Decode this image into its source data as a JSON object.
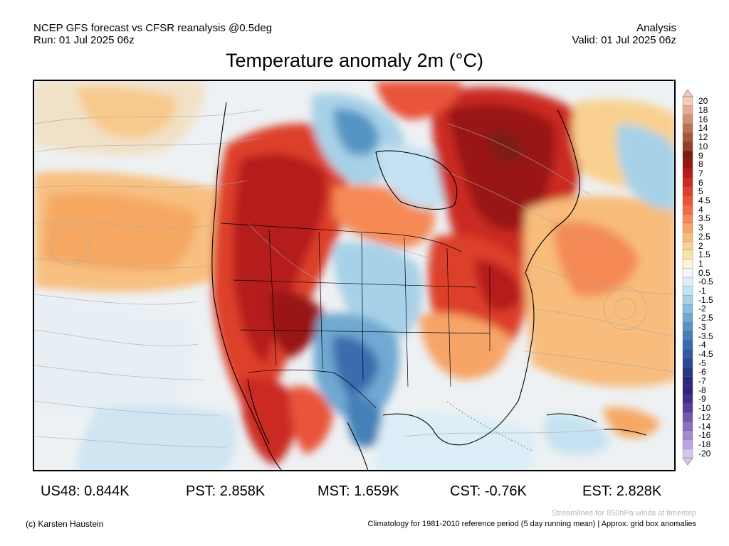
{
  "header": {
    "left_line1": "NCEP GFS forecast vs CFSR reanalysis @0.5deg",
    "left_line2": "Run: 01 Jul 2025 06z",
    "right_line1": "Analysis",
    "right_line2": "Valid: 01 Jul 2025 06z"
  },
  "title": "Temperature anomaly 2m (°C)",
  "colorbar": {
    "labels": [
      "20",
      "18",
      "16",
      "14",
      "12",
      "10",
      "9",
      "8",
      "7",
      "6",
      "5",
      "4.5",
      "4",
      "3.5",
      "3",
      "2.5",
      "2",
      "1.5",
      "1",
      "0.5",
      "-0.5",
      "-1",
      "-1.5",
      "-2",
      "-2.5",
      "-3",
      "-3.5",
      "-4",
      "-4.5",
      "-5",
      "-6",
      "-7",
      "-8",
      "-9",
      "-10",
      "-12",
      "-14",
      "-16",
      "-18",
      "-20"
    ],
    "colors": [
      "#f3cbb6",
      "#e7ad93",
      "#d48e70",
      "#c0704e",
      "#a65a39",
      "#8e4325",
      "#7c1a12",
      "#9a1414",
      "#b51c1c",
      "#cb2b22",
      "#dd3f2c",
      "#e8553a",
      "#f06e46",
      "#f58a56",
      "#f7a467",
      "#f8bc7b",
      "#f9d08f",
      "#fae3ab",
      "#fdf3d3",
      "#f4f6f8",
      "#dceef7",
      "#c4e2f1",
      "#a7d1e8",
      "#8bbedd",
      "#6fa9d1",
      "#5794c4",
      "#4580b8",
      "#3a6cad",
      "#335aa2",
      "#2c4891",
      "#26387f",
      "#2a2a78",
      "#33227d",
      "#462a8c",
      "#5b3c9d",
      "#7356b0",
      "#8a70c1",
      "#a28ad1",
      "#bca6e0",
      "#d6c6ef"
    ]
  },
  "stats": {
    "us48": "US48: 0.844K",
    "pst": "PST: 2.858K",
    "mst": "MST: 1.659K",
    "cst": "CST: -0.76K",
    "est": "EST: 2.828K"
  },
  "footer": {
    "credit": "(c) Karsten Haustein",
    "streamline_note": "Streamlines for 850hPa winds at timestep",
    "climatology_note": "Climatology for 1981-2010 reference period (5 day running mean) | Approx. grid box anomalies"
  }
}
